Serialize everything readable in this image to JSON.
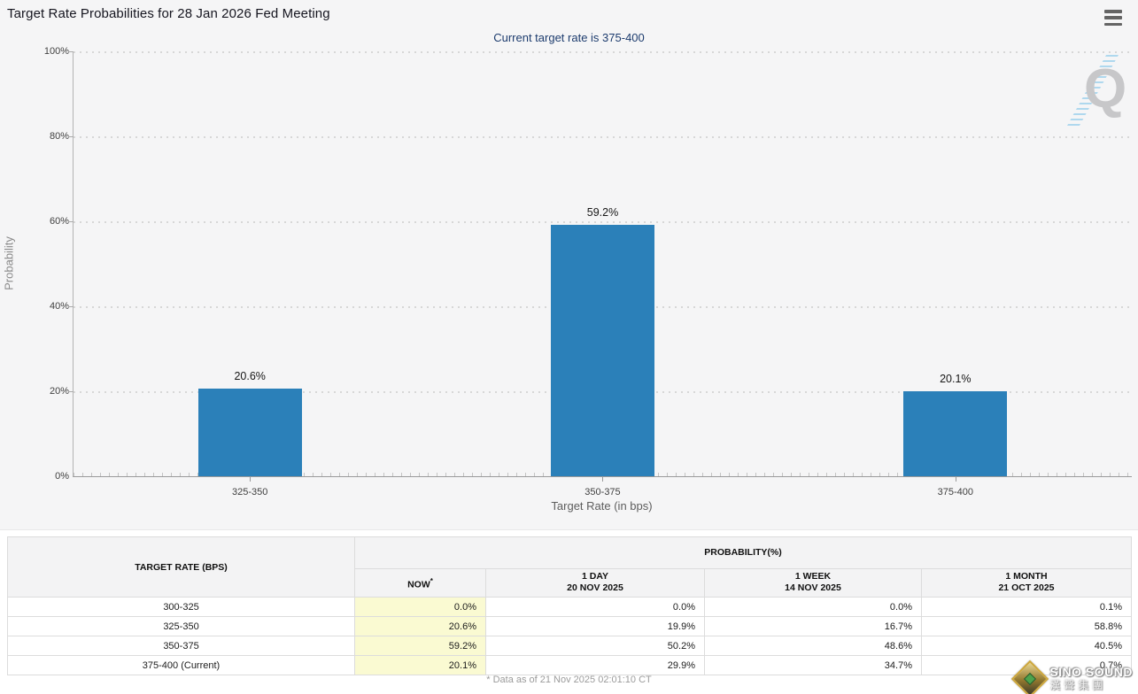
{
  "header": {
    "title": "Target Rate Probabilities for 28 Jan 2026 Fed Meeting",
    "subtitle": "Current target rate is 375-400",
    "menu_icon": "hamburger-menu-icon"
  },
  "chart_data": {
    "type": "bar",
    "categories": [
      "325-350",
      "350-375",
      "375-400"
    ],
    "values": [
      20.6,
      59.2,
      20.1
    ],
    "bar_labels": [
      "20.6%",
      "59.2%",
      "20.1%"
    ],
    "title": "Target Rate Probabilities for 28 Jan 2026 Fed Meeting",
    "subtitle": "Current target rate is 375-400",
    "xlabel": "Target Rate (in bps)",
    "ylabel": "Probability",
    "ylim": [
      0,
      100
    ],
    "yticks": [
      "0%",
      "20%",
      "40%",
      "60%",
      "80%",
      "100%"
    ],
    "grid": "horizontal dotted",
    "legend": "none",
    "bar_color": "#2b80b9",
    "background_color": "#f5f5f6",
    "watermark": "Q"
  },
  "table": {
    "rate_header": "TARGET RATE (BPS)",
    "group_header": "PROBABILITY(%)",
    "columns": [
      {
        "line1": "NOW",
        "sup": "*",
        "line2": ""
      },
      {
        "line1": "1 DAY",
        "sup": "",
        "line2": "20 NOV 2025"
      },
      {
        "line1": "1 WEEK",
        "sup": "",
        "line2": "14 NOV 2025"
      },
      {
        "line1": "1 MONTH",
        "sup": "",
        "line2": "21 OCT 2025"
      }
    ],
    "rows": [
      {
        "rate": "300-325",
        "values": [
          "0.0%",
          "0.0%",
          "0.0%",
          "0.1%"
        ]
      },
      {
        "rate": "325-350",
        "values": [
          "20.6%",
          "19.9%",
          "16.7%",
          "58.8%"
        ]
      },
      {
        "rate": "350-375",
        "values": [
          "59.2%",
          "50.2%",
          "48.6%",
          "40.5%"
        ]
      },
      {
        "rate": "375-400 (Current)",
        "values": [
          "20.1%",
          "29.9%",
          "34.7%",
          "0.7%"
        ]
      }
    ],
    "now_highlight_color": "#fafad2"
  },
  "footer": {
    "note": "* Data as of 21 Nov 2025 02:01:10 CT"
  },
  "watermarks": {
    "chart_logo": "Q",
    "brand_en": "SINO SOUND",
    "brand_cn": "漢聲集團"
  }
}
